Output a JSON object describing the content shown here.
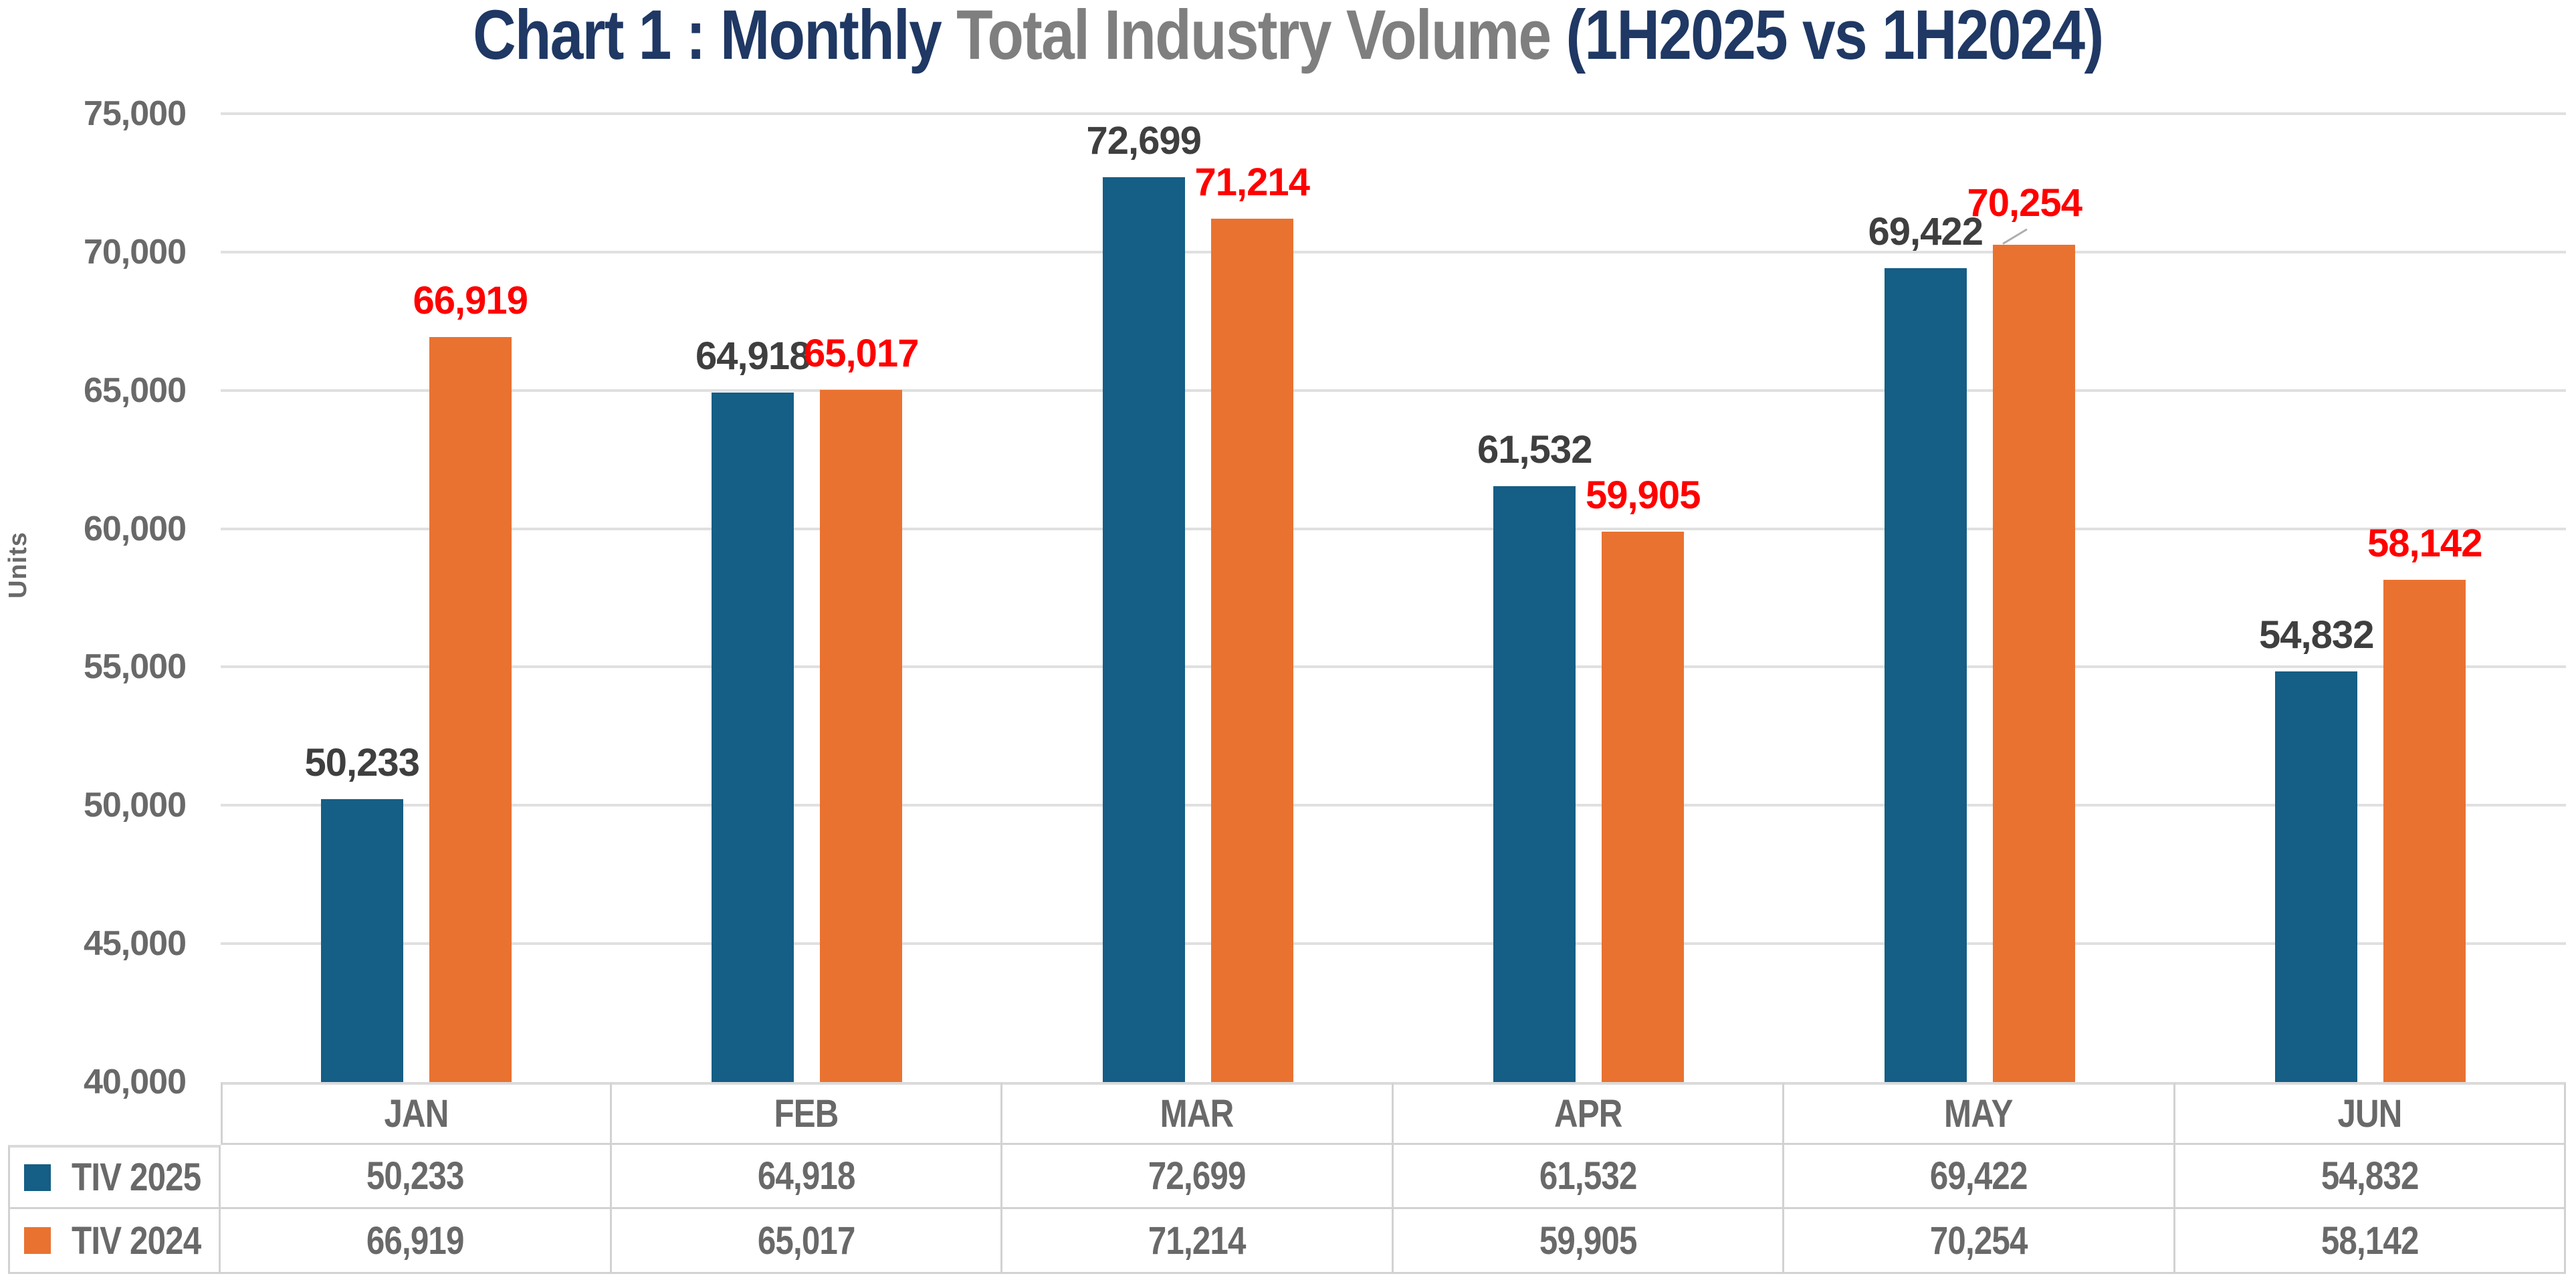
{
  "title": {
    "part1": "Chart 1 : Monthly ",
    "part2": "Total Industry Volume ",
    "part3": "(1H2025 vs 1H2024)"
  },
  "colors": {
    "title_navy": "#1F3864",
    "title_gray": "#7F7F7F",
    "bar_blue": "#155E85",
    "bar_orange": "#E97231",
    "label_red": "#FE0000",
    "label_dark_gray": "#3F3F3F",
    "axis_gray": "#696969",
    "gridline": "#E0E0E0",
    "leader_line": "#ADADAD",
    "table_border": "#D2D2D2"
  },
  "chart_data": {
    "type": "bar",
    "title": "Chart 1 : Monthly Total Industry Volume (1H2025 vs 1H2024)",
    "xlabel": "",
    "ylabel": "Units",
    "ylim": [
      40000,
      75000
    ],
    "ytick_step": 5000,
    "ytick_labels": [
      "40,000",
      "45,000",
      "50,000",
      "55,000",
      "60,000",
      "65,000",
      "70,000",
      "75,000"
    ],
    "grid": "horizontal",
    "legend_position": "table-left",
    "categories": [
      "JAN",
      "FEB",
      "MAR",
      "APR",
      "MAY",
      "JUN"
    ],
    "series": [
      {
        "name": "TIV 2025",
        "values": [
          50233,
          64918,
          72699,
          61532,
          69422,
          54832
        ],
        "labels": [
          "50,233",
          "64,918",
          "72,699",
          "61,532",
          "69,422",
          "54,832"
        ]
      },
      {
        "name": "TIV 2024",
        "values": [
          66919,
          65017,
          71214,
          59905,
          70254,
          58142
        ],
        "labels": [
          "66,919",
          "65,017",
          "71,214",
          "59,905",
          "70,254",
          "58,142"
        ]
      }
    ],
    "annotations": [
      {
        "series": 1,
        "category": "MAY",
        "leader_line": true
      }
    ]
  }
}
